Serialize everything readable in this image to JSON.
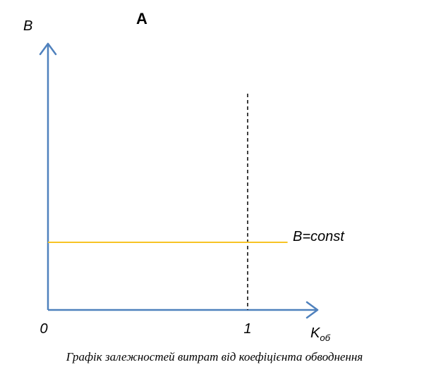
{
  "chart_data": {
    "type": "line",
    "title": "A",
    "ylabel": "B",
    "xlabel_main": "K",
    "xlabel_sub": "об",
    "x_ticks": [
      {
        "value": 0,
        "label": "0"
      },
      {
        "value": 1,
        "label": "1"
      }
    ],
    "xlim": [
      0,
      1.35
    ],
    "ylim": [
      0,
      1.3
    ],
    "series": [
      {
        "name": "B=const",
        "x": [
          0,
          1.2
        ],
        "y": [
          0.33,
          0.33
        ]
      }
    ],
    "reference_line": {
      "x": 1
    },
    "caption": "Графік залежностей витрат від коефіцієнта обводнення",
    "colors": {
      "axis": "#4f81bd",
      "series": "#f7c325",
      "reference": "#000000"
    }
  }
}
